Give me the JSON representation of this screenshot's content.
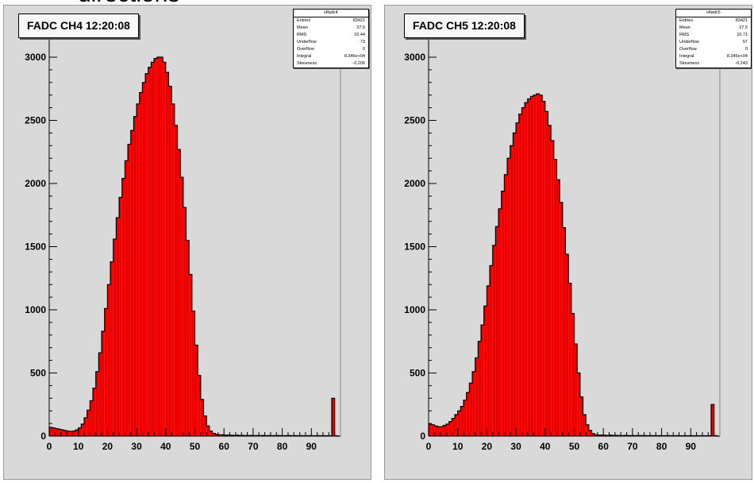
{
  "cut_text": "directions",
  "chart_data": [
    {
      "type": "bar",
      "title": "FADC CH4  12:20:08",
      "xlabel": "",
      "ylabel": "",
      "xlim": [
        0,
        100
      ],
      "ylim": [
        0,
        3000
      ],
      "x_ticks": [
        "0",
        "10",
        "20",
        "30",
        "40",
        "50",
        "60",
        "70",
        "80",
        "90"
      ],
      "y_ticks": [
        "0",
        "500",
        "1000",
        "1500",
        "2000",
        "2500",
        "3000"
      ],
      "bin_width": 1,
      "x": [
        0,
        1,
        2,
        3,
        4,
        5,
        6,
        7,
        8,
        9,
        10,
        11,
        12,
        13,
        14,
        15,
        16,
        17,
        18,
        19,
        20,
        21,
        22,
        23,
        24,
        25,
        26,
        27,
        28,
        29,
        30,
        31,
        32,
        33,
        34,
        35,
        36,
        37,
        38,
        39,
        40,
        41,
        42,
        43,
        44,
        45,
        46,
        47,
        48,
        49,
        50,
        51,
        52,
        53,
        54,
        55,
        56,
        57,
        58,
        59,
        60,
        61,
        62,
        63,
        64,
        65,
        66,
        67,
        68,
        69,
        70,
        71,
        72,
        73,
        74,
        75,
        76,
        77,
        78,
        79,
        80,
        81,
        82,
        83,
        84,
        85,
        86,
        87,
        88,
        89,
        90,
        91,
        92,
        93,
        94,
        95,
        96,
        97,
        98,
        99
      ],
      "values": [
        70,
        65,
        60,
        55,
        50,
        45,
        40,
        38,
        40,
        50,
        65,
        95,
        145,
        205,
        280,
        380,
        510,
        660,
        830,
        1010,
        1200,
        1380,
        1560,
        1730,
        1890,
        2040,
        2180,
        2310,
        2420,
        2530,
        2630,
        2720,
        2800,
        2870,
        2920,
        2960,
        2990,
        3005,
        3000,
        2960,
        2880,
        2770,
        2630,
        2460,
        2270,
        2050,
        1810,
        1550,
        1280,
        990,
        720,
        480,
        290,
        160,
        80,
        40,
        22,
        14,
        10,
        10,
        8,
        9,
        7,
        6,
        8,
        5,
        6,
        4,
        5,
        6,
        4,
        5,
        4,
        6,
        4,
        5,
        4,
        4,
        5,
        4,
        3,
        4,
        5,
        3,
        4,
        3,
        4,
        3,
        3,
        4,
        3,
        3,
        4,
        3,
        3,
        3,
        3,
        300,
        3,
        0
      ],
      "colors": {
        "fill": "#ee0000",
        "edge": "#000000",
        "frame_bg": "#d9d9d9"
      },
      "stats": {
        "header": "Hfadc4",
        "rows": [
          {
            "name": "Entries",
            "value": "83421"
          },
          {
            "name": "Mean",
            "value": "37.5"
          },
          {
            "name": "RMS",
            "value": "10.44"
          },
          {
            "name": "Underflow",
            "value": "73"
          },
          {
            "name": "Overflow",
            "value": "0"
          },
          {
            "name": "Integral",
            "value": "8.346e+04"
          },
          {
            "name": "Skewness",
            "value": "-0.206"
          }
        ]
      }
    },
    {
      "type": "bar",
      "title": "FADC CH5  12:20:08",
      "xlabel": "",
      "ylabel": "",
      "xlim": [
        0,
        100
      ],
      "ylim": [
        0,
        3000
      ],
      "x_ticks": [
        "0",
        "10",
        "20",
        "30",
        "40",
        "50",
        "60",
        "70",
        "80",
        "90"
      ],
      "y_ticks": [
        "0",
        "500",
        "1000",
        "1500",
        "2000",
        "2500",
        "3000"
      ],
      "bin_width": 1,
      "x": [
        0,
        1,
        2,
        3,
        4,
        5,
        6,
        7,
        8,
        9,
        10,
        11,
        12,
        13,
        14,
        15,
        16,
        17,
        18,
        19,
        20,
        21,
        22,
        23,
        24,
        25,
        26,
        27,
        28,
        29,
        30,
        31,
        32,
        33,
        34,
        35,
        36,
        37,
        38,
        39,
        40,
        41,
        42,
        43,
        44,
        45,
        46,
        47,
        48,
        49,
        50,
        51,
        52,
        53,
        54,
        55,
        56,
        57,
        58,
        59,
        60,
        61,
        62,
        63,
        64,
        65,
        66,
        67,
        68,
        69,
        70,
        71,
        72,
        73,
        74,
        75,
        76,
        77,
        78,
        79,
        80,
        81,
        82,
        83,
        84,
        85,
        86,
        87,
        88,
        89,
        90,
        91,
        92,
        93,
        94,
        95,
        96,
        97,
        98,
        99
      ],
      "values": [
        95,
        90,
        80,
        75,
        75,
        85,
        95,
        115,
        140,
        170,
        200,
        235,
        285,
        345,
        420,
        510,
        620,
        750,
        880,
        1030,
        1190,
        1350,
        1510,
        1660,
        1800,
        1940,
        2070,
        2200,
        2300,
        2400,
        2480,
        2550,
        2600,
        2640,
        2670,
        2690,
        2700,
        2710,
        2700,
        2650,
        2570,
        2460,
        2340,
        2190,
        2030,
        1850,
        1650,
        1440,
        1210,
        970,
        730,
        500,
        310,
        170,
        90,
        45,
        20,
        10,
        8,
        9,
        7,
        6,
        8,
        5,
        6,
        5,
        4,
        6,
        5,
        4,
        5,
        4,
        4,
        5,
        4,
        3,
        4,
        4,
        3,
        4,
        3,
        3,
        4,
        3,
        3,
        4,
        3,
        3,
        3,
        3,
        3,
        3,
        3,
        3,
        3,
        3,
        3,
        250,
        3,
        0
      ],
      "colors": {
        "fill": "#ee0000",
        "edge": "#000000",
        "frame_bg": "#d9d9d9"
      },
      "stats": {
        "header": "Hfadc5",
        "rows": [
          {
            "name": "Entries",
            "value": "83421"
          },
          {
            "name": "Mean",
            "value": "37.5"
          },
          {
            "name": "RMS",
            "value": "10.71"
          },
          {
            "name": "Underflow",
            "value": "57"
          },
          {
            "name": "Overflow",
            "value": "0"
          },
          {
            "name": "Integral",
            "value": "8.345e+04"
          },
          {
            "name": "Skewness",
            "value": "-0.243"
          }
        ]
      }
    }
  ]
}
